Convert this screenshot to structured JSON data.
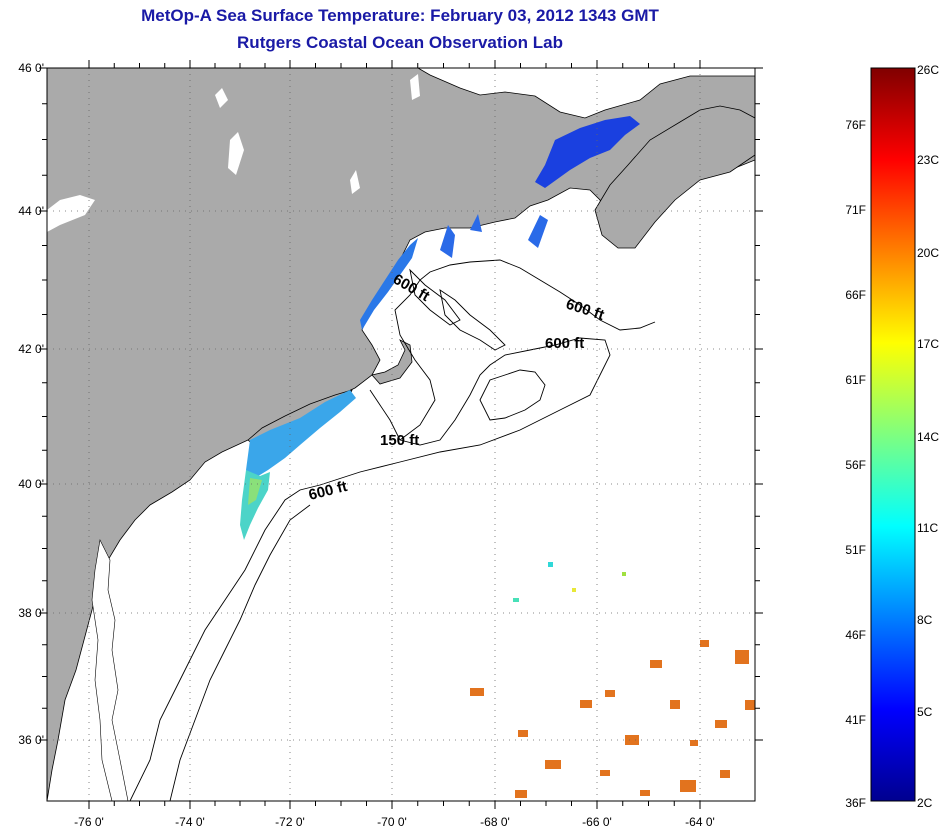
{
  "header": {
    "title": "MetOp-A Sea Surface Temperature:  February 03, 2012 1343 GMT",
    "subtitle": "Rutgers Coastal Ocean Observation Lab"
  },
  "map": {
    "lon_ticks": [
      "-76 0'",
      "-74 0'",
      "-72 0'",
      "-70 0'",
      "-68 0'",
      "-66 0'",
      "-64 0'"
    ],
    "lat_ticks": [
      "46 0'",
      "44 0'",
      "42 0'",
      "40 0'",
      "38 0'",
      "36 0'"
    ],
    "contour_labels": [
      "600 ft",
      "600 ft",
      "600 ft",
      "150 ft",
      "600 ft"
    ],
    "colors": {
      "land": "#aaaaaa",
      "ocean": "#ffffff",
      "contour": "#000000"
    }
  },
  "colorbar": {
    "celsius": [
      "26C",
      "23C",
      "20C",
      "17C",
      "14C",
      "11C",
      "8C",
      "5C",
      "2C"
    ],
    "fahrenheit": [
      "76F",
      "71F",
      "66F",
      "61F",
      "56F",
      "51F",
      "46F",
      "41F",
      "36F"
    ]
  }
}
